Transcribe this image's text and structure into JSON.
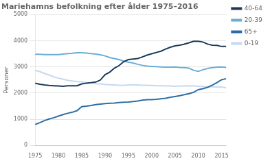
{
  "chart_data": {
    "type": "line",
    "title": "Mariehamns befolkning efter ålder 1975–2016",
    "ylabel": "Personer",
    "x": [
      1975,
      1976,
      1977,
      1978,
      1979,
      1980,
      1981,
      1982,
      1983,
      1984,
      1985,
      1986,
      1987,
      1988,
      1989,
      1990,
      1991,
      1992,
      1993,
      1994,
      1995,
      1996,
      1997,
      1998,
      1999,
      2000,
      2001,
      2002,
      2003,
      2004,
      2005,
      2006,
      2007,
      2008,
      2009,
      2010,
      2011,
      2012,
      2013,
      2014,
      2015,
      2016
    ],
    "series": [
      {
        "name": "40-64",
        "color": "#1a3a5c",
        "values": [
          2380,
          2340,
          2310,
          2290,
          2280,
          2270,
          2260,
          2280,
          2280,
          2280,
          2350,
          2380,
          2400,
          2420,
          2500,
          2700,
          2800,
          2950,
          3050,
          3200,
          3280,
          3300,
          3320,
          3380,
          3450,
          3500,
          3550,
          3600,
          3680,
          3750,
          3800,
          3830,
          3870,
          3920,
          3980,
          3980,
          3950,
          3870,
          3830,
          3820,
          3780,
          3780
        ]
      },
      {
        "name": "20-39",
        "color": "#6aaed6",
        "values": [
          3480,
          3480,
          3470,
          3470,
          3470,
          3470,
          3490,
          3510,
          3520,
          3540,
          3540,
          3530,
          3510,
          3490,
          3460,
          3420,
          3360,
          3320,
          3280,
          3220,
          3180,
          3150,
          3100,
          3060,
          3030,
          3020,
          3010,
          3000,
          2990,
          2990,
          3000,
          2980,
          2970,
          2950,
          2870,
          2830,
          2890,
          2940,
          2970,
          2990,
          3000,
          2980
        ]
      },
      {
        "name": "65+",
        "color": "#2e6da4",
        "values": [
          800,
          870,
          950,
          1010,
          1060,
          1120,
          1180,
          1230,
          1270,
          1330,
          1480,
          1500,
          1530,
          1560,
          1580,
          1600,
          1610,
          1620,
          1640,
          1650,
          1660,
          1680,
          1700,
          1730,
          1750,
          1750,
          1760,
          1780,
          1800,
          1840,
          1870,
          1900,
          1940,
          1980,
          2030,
          2130,
          2170,
          2220,
          2300,
          2400,
          2510,
          2550
        ]
      },
      {
        "name": "0-19",
        "color": "#c6d9f0",
        "values": [
          2870,
          2820,
          2750,
          2690,
          2620,
          2570,
          2530,
          2490,
          2460,
          2440,
          2430,
          2400,
          2380,
          2360,
          2350,
          2330,
          2320,
          2310,
          2300,
          2290,
          2310,
          2310,
          2310,
          2300,
          2300,
          2290,
          2280,
          2280,
          2270,
          2270,
          2260,
          2270,
          2270,
          2280,
          2270,
          2260,
          2250,
          2240,
          2240,
          2230,
          2230,
          2200
        ]
      }
    ],
    "xlim": [
      1975,
      2016
    ],
    "xticks": [
      1975,
      1980,
      1985,
      1990,
      1995,
      2000,
      2005,
      2010,
      2015
    ],
    "ylim": [
      0,
      5000
    ],
    "yticks": [
      0,
      1000,
      2000,
      3000,
      4000,
      5000
    ],
    "grid": "y",
    "legend": "right"
  }
}
